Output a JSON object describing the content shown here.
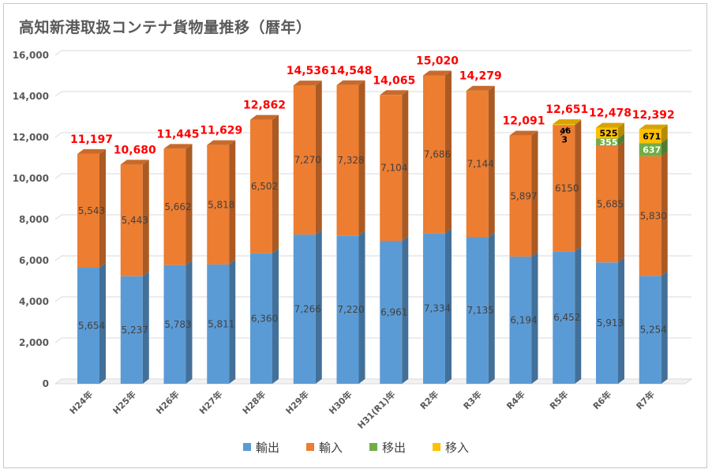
{
  "title": "高知新港取扱コンテナ貨物量推移（暦年）",
  "chart_data": {
    "type": "bar",
    "stacked": true,
    "title": "高知新港取扱コンテナ貨物量推移（暦年）",
    "categories": [
      "H24年",
      "H25年",
      "H26年",
      "H27年",
      "H28年",
      "H29年",
      "H30年",
      "H31(R1)年",
      "R2年",
      "R3年",
      "R4年",
      "R5年",
      "R6年",
      "R7年"
    ],
    "series": [
      {
        "name": "輸出",
        "color": "#5b9bd5",
        "values": [
          5654,
          5237,
          5783,
          5811,
          6360,
          7266,
          7220,
          6961,
          7334,
          7135,
          6194,
          6452,
          5913,
          5254
        ]
      },
      {
        "name": "輸入",
        "color": "#ed7d31",
        "values": [
          5543,
          5443,
          5662,
          5818,
          6502,
          7270,
          7328,
          7104,
          7686,
          7144,
          5897,
          6150,
          5685,
          5830
        ]
      },
      {
        "name": "移出",
        "color": "#70ad47",
        "values": [
          0,
          0,
          0,
          0,
          0,
          0,
          0,
          0,
          0,
          0,
          0,
          3,
          355,
          637
        ]
      },
      {
        "name": "移入",
        "color": "#ffc000",
        "values": [
          0,
          0,
          0,
          0,
          0,
          0,
          0,
          0,
          0,
          0,
          0,
          46,
          525,
          671
        ]
      }
    ],
    "value_labels": {
      "輸出": [
        "5,654",
        "5,237",
        "5,783",
        "5,811",
        "6,360",
        "7,266",
        "7,220",
        "6,961",
        "7,334",
        "7,135",
        "6,194",
        "6,452",
        "5,913",
        "5,254"
      ],
      "輸入": [
        "5,543",
        "5,443",
        "5,662",
        "5,818",
        "6,502",
        "7,270",
        "7,328",
        "7,104",
        "7,686",
        "7,144",
        "5,897",
        "6150",
        "5,685",
        "5,830"
      ],
      "移出": [
        "",
        "",
        "",
        "",
        "",
        "",
        "",
        "",
        "",
        "",
        "",
        "3",
        "355",
        "637"
      ],
      "移入": [
        "",
        "",
        "",
        "",
        "",
        "",
        "",
        "",
        "",
        "",
        "",
        "46",
        "525",
        "671"
      ]
    },
    "totals": [
      11197,
      10680,
      11445,
      11629,
      12862,
      14536,
      14548,
      14065,
      15020,
      14279,
      12091,
      12651,
      12478,
      12392
    ],
    "total_labels": [
      "11,197",
      "10,680",
      "11,445",
      "11,629",
      "12,862",
      "14,536",
      "14,548",
      "14,065",
      "15,020",
      "14,279",
      "12,091",
      "12,651",
      "12,478",
      "12,392"
    ],
    "total_label_color": "#ff0000",
    "ylim": [
      0,
      16000
    ],
    "yticks": [
      "0",
      "2,000",
      "4,000",
      "6,000",
      "8,000",
      "10,000",
      "12,000",
      "14,000",
      "16,000"
    ],
    "xlabel": "",
    "ylabel": "",
    "grid": true,
    "legend_position": "bottom"
  }
}
